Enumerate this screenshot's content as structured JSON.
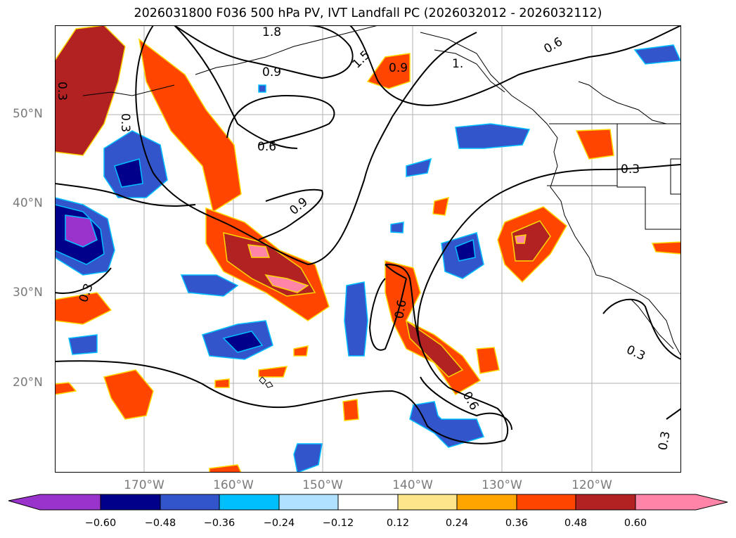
{
  "title": "2026031800 F036 500 hPa PV, IVT Landfall PC (2026032012 - 2026032112)",
  "lat_labels": [
    "50°N",
    "40°N",
    "30°N",
    "20°N"
  ],
  "lon_labels": [
    "170°W",
    "160°W",
    "150°W",
    "140°W",
    "130°W",
    "120°W"
  ],
  "contour_labels": [
    "1.8",
    "1.5",
    "0.9",
    "0.9",
    "1.",
    "0.6",
    "0.3",
    "0.3",
    "0.6",
    "0.3",
    "0.9",
    "0.3",
    "0.6",
    "0.6",
    "0.3",
    "0.3"
  ],
  "colorbar": {
    "ticks": [
      "−0.60",
      "−0.48",
      "−0.36",
      "−0.24",
      "−0.12",
      "0.12",
      "0.24",
      "0.36",
      "0.48",
      "0.60"
    ],
    "colors": {
      "lt_-0.60": "#9933cc",
      "-0.60_-0.48": "#00008b",
      "-0.48_-0.36": "#3355cc",
      "-0.36_-0.24": "#00bfff",
      "-0.24_-0.12": "#b0e2ff",
      "-0.12_0.12": "#ffffff",
      "0.12_0.24": "#fde68a",
      "0.24_0.36": "#ffa500",
      "0.36_0.48": "#ff4500",
      "0.48_0.60": "#b22222",
      "gt_0.60": "#ff85a8"
    }
  }
}
